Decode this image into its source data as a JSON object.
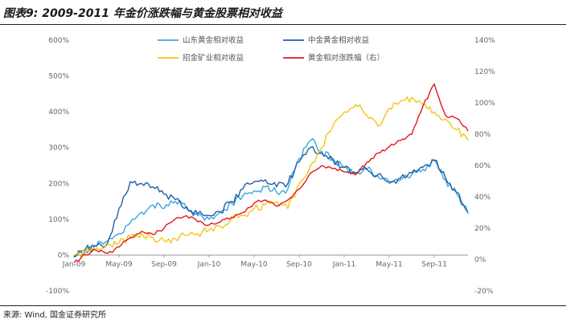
{
  "figure": {
    "title": "图表9: 2009-2011 年金价涨跌幅与黄金股票相对收益",
    "source": "来源: Wind, 国金证券研究所"
  },
  "colors": {
    "shandong": "#3aa6dd",
    "zhongjin": "#1f5fa8",
    "zhaojin": "#f5c518",
    "gold": "#e0181e"
  },
  "chart_data": {
    "type": "line",
    "title": "",
    "xlabel": "",
    "ylabel": "",
    "x_ticks": [
      "Jan-09",
      "May-09",
      "Sep-09",
      "Jan-10",
      "May-10",
      "Sep-10",
      "Jan-11",
      "May-11",
      "Sep-11"
    ],
    "x_range": [
      "2009-01",
      "2011-12"
    ],
    "y_left": {
      "range": [
        -100,
        600
      ],
      "ticks": [
        "-100%",
        "0%",
        "100%",
        "200%",
        "300%",
        "400%",
        "500%",
        "600%"
      ]
    },
    "y_right": {
      "range": [
        -20,
        140
      ],
      "ticks": [
        "-20%",
        "0%",
        "20%",
        "40%",
        "60%",
        "80%",
        "100%",
        "120%",
        "140%"
      ]
    },
    "legend_position": "top",
    "grid": false,
    "series": [
      {
        "name": "山东黄金相对收益",
        "axis": "left",
        "color": "#3aa6dd",
        "x": [
          "2009-01",
          "2009-02",
          "2009-03",
          "2009-04",
          "2009-05",
          "2009-06",
          "2009-07",
          "2009-08",
          "2009-09",
          "2009-10",
          "2009-11",
          "2009-12",
          "2010-01",
          "2010-02",
          "2010-03",
          "2010-04",
          "2010-05",
          "2010-06",
          "2010-07",
          "2010-08",
          "2010-09",
          "2010-10",
          "2010-11",
          "2010-12",
          "2011-01",
          "2011-02",
          "2011-03",
          "2011-04",
          "2011-05",
          "2011-06",
          "2011-07",
          "2011-08",
          "2011-09",
          "2011-10",
          "2011-11",
          "2011-12"
        ],
        "values": [
          0,
          10,
          25,
          40,
          60,
          90,
          120,
          140,
          130,
          150,
          130,
          110,
          100,
          120,
          145,
          165,
          180,
          190,
          175,
          185,
          270,
          320,
          290,
          270,
          245,
          230,
          240,
          220,
          200,
          210,
          225,
          240,
          265,
          210,
          170,
          115
        ]
      },
      {
        "name": "中金黄金相对收益",
        "axis": "left",
        "color": "#1f5fa8",
        "x": [
          "2009-01",
          "2009-02",
          "2009-03",
          "2009-04",
          "2009-05",
          "2009-06",
          "2009-07",
          "2009-08",
          "2009-09",
          "2009-10",
          "2009-11",
          "2009-12",
          "2010-01",
          "2010-02",
          "2010-03",
          "2010-04",
          "2010-05",
          "2010-06",
          "2010-07",
          "2010-08",
          "2010-09",
          "2010-10",
          "2010-11",
          "2010-12",
          "2011-01",
          "2011-02",
          "2011-03",
          "2011-04",
          "2011-05",
          "2011-06",
          "2011-07",
          "2011-08",
          "2011-09",
          "2011-10",
          "2011-11",
          "2011-12"
        ],
        "values": [
          -5,
          15,
          25,
          35,
          130,
          205,
          200,
          190,
          170,
          155,
          135,
          115,
          110,
          120,
          150,
          185,
          205,
          210,
          190,
          200,
          260,
          300,
          285,
          265,
          245,
          230,
          240,
          225,
          205,
          215,
          230,
          245,
          265,
          215,
          175,
          120
        ]
      },
      {
        "name": "招金矿业相对收益",
        "axis": "left",
        "color": "#f5c518",
        "x": [
          "2009-01",
          "2009-02",
          "2009-03",
          "2009-04",
          "2009-05",
          "2009-06",
          "2009-07",
          "2009-08",
          "2009-09",
          "2009-10",
          "2009-11",
          "2009-12",
          "2010-01",
          "2010-02",
          "2010-03",
          "2010-04",
          "2010-05",
          "2010-06",
          "2010-07",
          "2010-08",
          "2010-09",
          "2010-10",
          "2010-11",
          "2010-12",
          "2011-01",
          "2011-02",
          "2011-03",
          "2011-04",
          "2011-05",
          "2011-06",
          "2011-07",
          "2011-08",
          "2011-09",
          "2011-10",
          "2011-11",
          "2011-12"
        ],
        "values": [
          0,
          5,
          20,
          30,
          35,
          50,
          60,
          50,
          40,
          45,
          55,
          60,
          70,
          80,
          100,
          110,
          130,
          140,
          150,
          130,
          200,
          250,
          300,
          360,
          400,
          420,
          390,
          360,
          410,
          430,
          440,
          420,
          400,
          380,
          350,
          320
        ]
      },
      {
        "name": "黄金相对涨跌幅（右）",
        "axis": "right",
        "color": "#e0181e",
        "x": [
          "2009-01",
          "2009-02",
          "2009-03",
          "2009-04",
          "2009-05",
          "2009-06",
          "2009-07",
          "2009-08",
          "2009-09",
          "2009-10",
          "2009-11",
          "2009-12",
          "2010-01",
          "2010-02",
          "2010-03",
          "2010-04",
          "2010-05",
          "2010-06",
          "2010-07",
          "2010-08",
          "2010-09",
          "2010-10",
          "2010-11",
          "2010-12",
          "2011-01",
          "2011-02",
          "2011-03",
          "2011-04",
          "2011-05",
          "2011-06",
          "2011-07",
          "2011-08",
          "2011-09",
          "2011-10",
          "2011-11",
          "2011-12"
        ],
        "values": [
          -2,
          3,
          6,
          4,
          8,
          14,
          18,
          16,
          20,
          26,
          28,
          24,
          22,
          24,
          27,
          30,
          36,
          38,
          34,
          38,
          45,
          55,
          60,
          58,
          56,
          54,
          62,
          68,
          72,
          76,
          80,
          98,
          112,
          92,
          90,
          82
        ]
      }
    ]
  }
}
